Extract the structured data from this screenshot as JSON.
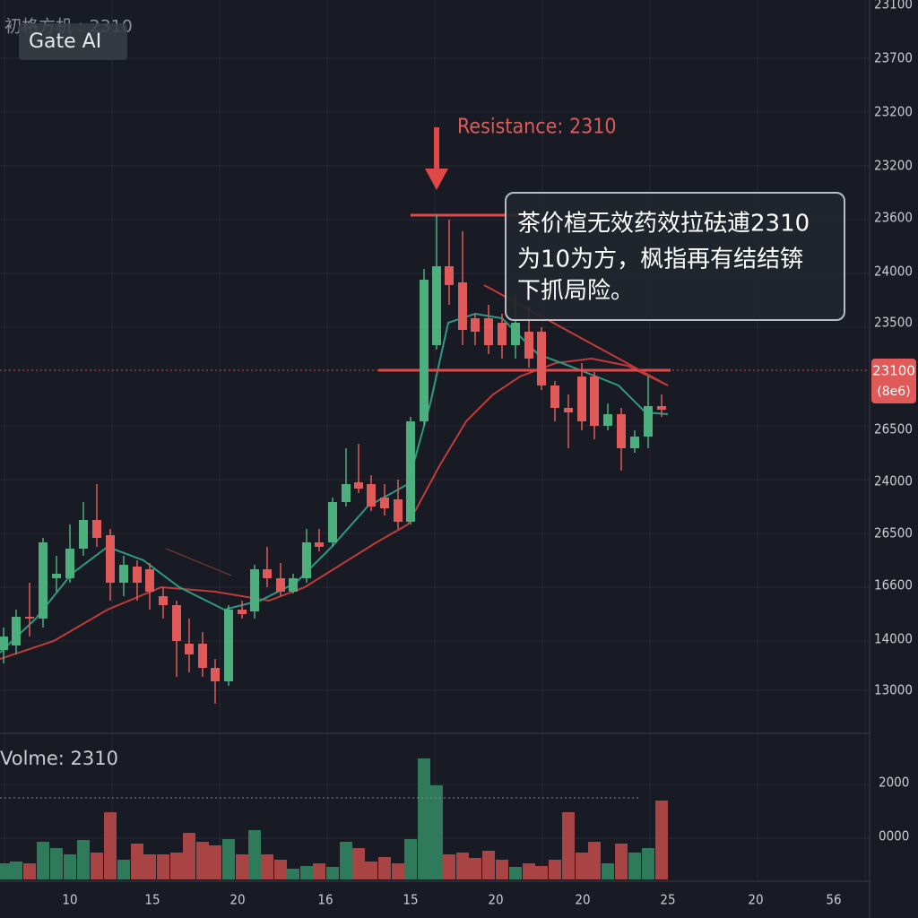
{
  "header": {
    "watermark": "Gate AI",
    "symbol": "初格方机 : 2310"
  },
  "resistance_label": "Resistance: 2310",
  "annotation": [
    "茶价楦无效药效拉砝逋2310",
    "为10为方，枫指再有结结锛",
    "下抓局险。"
  ],
  "price_axis": [
    "23100",
    "23700",
    "23200",
    "23200",
    "23600",
    "24000",
    "23500",
    "26500",
    "24000",
    "26500",
    "16600",
    "14000",
    "13000"
  ],
  "price_tag": {
    "price": "23100",
    "sub": "(8e6)"
  },
  "volume_label": "Volme:  2310",
  "volume_axis": [
    "2000",
    "0000"
  ],
  "time_axis": [
    "10",
    "15",
    "20",
    "16",
    "15",
    "20",
    "20",
    "25",
    "20",
    "56"
  ]
}
